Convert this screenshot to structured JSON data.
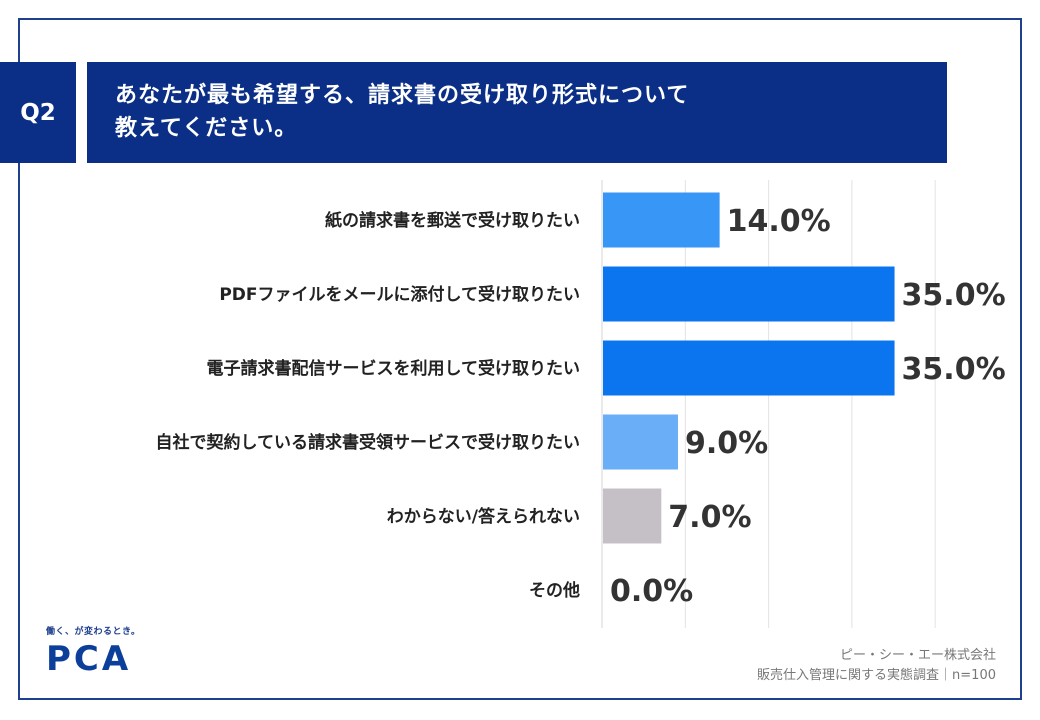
{
  "question": {
    "badge": "Q2",
    "title_line1": "あなたが最も希望する、請求書の受け取り形式について",
    "title_line2": "教えてください。"
  },
  "chart_data": {
    "type": "bar",
    "orientation": "horizontal",
    "categories": [
      "紙の請求書を郵送で受け取りたい",
      "PDFファイルをメールに添付して受け取りたい",
      "電子請求書配信サービスを利用して受け取りたい",
      "自社で契約している請求書受領サービスで受け取りたい",
      "わからない/答えられない",
      "その他"
    ],
    "values": [
      14.0,
      35.0,
      35.0,
      9.0,
      7.0,
      0.0
    ],
    "value_labels": [
      "14.0%",
      "35.0%",
      "35.0%",
      "9.0%",
      "7.0%",
      "0.0%"
    ],
    "colors": [
      "#3796f6",
      "#0a75ee",
      "#0a75ee",
      "#6aaef8",
      "#c4c0c6",
      "#c4c0c6"
    ],
    "xlim": [
      0,
      40
    ],
    "grid": true
  },
  "branding": {
    "tagline": "働く、が変わるとき。",
    "logo_text": "PCA"
  },
  "footer": {
    "company": "ピー・シー・エー株式会社",
    "survey": "販売仕入管理に関する実態調査｜n=100"
  }
}
